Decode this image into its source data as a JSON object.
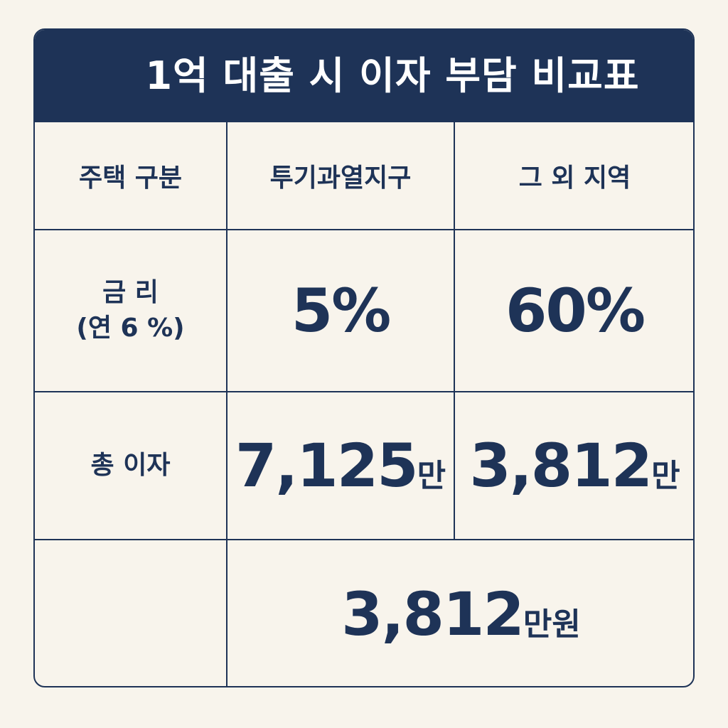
{
  "title": "1억 대출 시 이자 부담 비교표",
  "table": {
    "header": [
      "주택 구분",
      "투기과열지구",
      "그 외 지역"
    ],
    "rows": [
      {
        "label": [
          "금 리",
          "(연 6 %)"
        ],
        "cells": [
          {
            "value": "5%"
          },
          {
            "value": "60%"
          }
        ]
      },
      {
        "label": [
          "총 이자"
        ],
        "cells": [
          {
            "value": "7,125",
            "unit": "만"
          },
          {
            "value": "3,812",
            "unit": "만"
          }
        ]
      },
      {
        "merged": {
          "value": "3,812",
          "unit": "만원"
        }
      }
    ]
  }
}
